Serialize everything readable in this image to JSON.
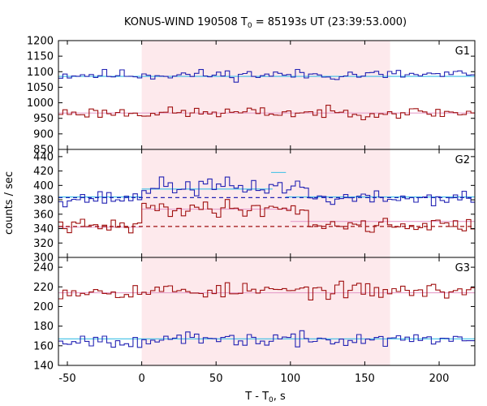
{
  "chart_data": {
    "type": "line",
    "title_main": "KONUS-WIND 190508 T",
    "title_sub": "0",
    "title_rest": " = 85193s UT (23:39:53.000)",
    "xlabel_main": "T - T",
    "xlabel_sub": "0",
    "xlabel_rest": ", s",
    "ylabel": "counts / sec",
    "xlim": [
      -56,
      224
    ],
    "x_ticks": [
      -50,
      0,
      50,
      100,
      150,
      200
    ],
    "x_tick_labels": [
      "-50",
      "0",
      "50",
      "100",
      "150",
      "200"
    ],
    "highlight_interval": [
      0,
      167
    ],
    "colors": {
      "blue": "#2323b4",
      "red": "#a01010",
      "cyan": "#3cbfe6",
      "pink": "#e69fcb",
      "shade": "#fde9ec"
    },
    "panels": [
      {
        "label": "G1",
        "ylim": [
          850,
          1200
        ],
        "y_ticks": [
          850,
          900,
          950,
          1000,
          1050,
          1100,
          1150,
          1200
        ],
        "y_tick_labels": [
          "850",
          "900",
          "950",
          "1000",
          "1050",
          "1100",
          "1150",
          "1200"
        ],
        "series": [
          {
            "color": "blue",
            "kind": "step",
            "seed": 11,
            "segments": [
              {
                "from": -56,
                "to": 224,
                "mean": 1090,
                "amp": 20
              }
            ]
          },
          {
            "color": "red",
            "kind": "step",
            "seed": 23,
            "segments": [
              {
                "from": -56,
                "to": 224,
                "mean": 968,
                "amp": 20
              }
            ]
          }
        ],
        "backgrounds": [
          {
            "color": "cyan",
            "y": 1085,
            "from": -56,
            "to": 224,
            "dashed": false
          },
          {
            "color": "pink",
            "y": 967,
            "from": -56,
            "to": 224,
            "dashed": false
          }
        ]
      },
      {
        "label": "G2",
        "ylim": [
          300,
          450
        ],
        "y_ticks": [
          300,
          320,
          340,
          360,
          380,
          400,
          420,
          440
        ],
        "y_tick_labels": [
          "300",
          "320",
          "340",
          "360",
          "380",
          "400",
          "420",
          "440"
        ],
        "series": [
          {
            "color": "blue",
            "kind": "step",
            "seed": 37,
            "segments": [
              {
                "from": -56,
                "to": 0,
                "mean": 382,
                "amp": 12
              },
              {
                "from": 0,
                "to": 110,
                "mean": 398,
                "amp": 14
              },
              {
                "from": 110,
                "to": 224,
                "mean": 382,
                "amp": 11
              }
            ]
          },
          {
            "color": "red",
            "kind": "step",
            "seed": 41,
            "segments": [
              {
                "from": -56,
                "to": 0,
                "mean": 343,
                "amp": 11
              },
              {
                "from": 0,
                "to": 110,
                "mean": 368,
                "amp": 13
              },
              {
                "from": 110,
                "to": 224,
                "mean": 345,
                "amp": 11
              }
            ]
          }
        ],
        "backgrounds": [
          {
            "color": "cyan",
            "y": 384,
            "from": -56,
            "to": 0,
            "dashed": false
          },
          {
            "color": "cyan",
            "y": 395,
            "from": 0,
            "to": 88,
            "dashed": false
          },
          {
            "color": "cyan",
            "y": 418,
            "from": 87,
            "to": 97,
            "dashed": false
          },
          {
            "color": "cyan",
            "y": 384,
            "from": 97,
            "to": 224,
            "dashed": false
          },
          {
            "color": "pink",
            "y": 342,
            "from": -56,
            "to": 0,
            "dashed": false
          },
          {
            "color": "pink",
            "y": 367,
            "from": 0,
            "to": 100,
            "dashed": false
          },
          {
            "color": "pink",
            "y": 350,
            "from": 100,
            "to": 224,
            "dashed": false
          },
          {
            "color": "blue",
            "y": 383,
            "from": -56,
            "to": 224,
            "dashed": true
          },
          {
            "color": "red",
            "y": 343,
            "from": -56,
            "to": 224,
            "dashed": true
          }
        ]
      },
      {
        "label": "G3",
        "ylim": [
          140,
          250
        ],
        "y_ticks": [
          140,
          160,
          180,
          200,
          220,
          240
        ],
        "y_tick_labels": [
          "140",
          "160",
          "180",
          "200",
          "220",
          "240"
        ],
        "series": [
          {
            "color": "red",
            "kind": "step",
            "seed": 53,
            "segments": [
              {
                "from": -56,
                "to": 224,
                "mean": 216,
                "amp": 9
              }
            ]
          },
          {
            "color": "blue",
            "kind": "step",
            "seed": 67,
            "segments": [
              {
                "from": -56,
                "to": 224,
                "mean": 166,
                "amp": 8
              }
            ]
          }
        ],
        "backgrounds": [
          {
            "color": "pink",
            "y": 214,
            "from": -56,
            "to": 224,
            "dashed": false
          },
          {
            "color": "cyan",
            "y": 167,
            "from": -56,
            "to": 224,
            "dashed": false
          }
        ]
      }
    ]
  }
}
